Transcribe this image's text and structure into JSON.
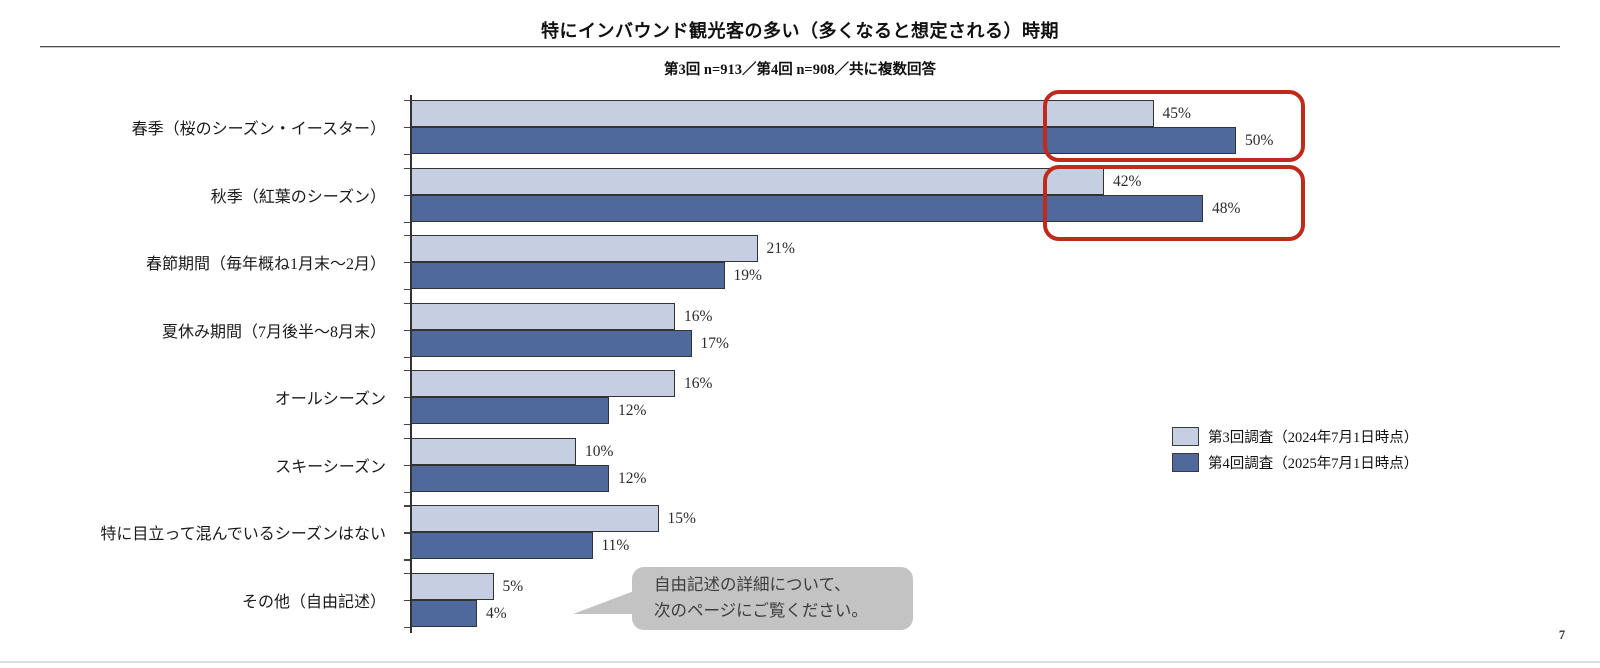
{
  "page": {
    "title": "特にインバウンド観光客の多い（多くなると想定される）時期",
    "subtitle": "第3回 n=913／第4回 n=908／共に複数回答",
    "page_number": "7"
  },
  "chart_data": {
    "type": "bar",
    "orientation": "horizontal",
    "title": "特にインバウンド観光客の多い（多くなると想定される）時期",
    "subtitle": "第3回 n=913／第4回 n=908／共に複数回答",
    "categories": [
      "春季（桜のシーズン・イースター）",
      "秋季（紅葉のシーズン）",
      "春節期間（毎年概ね1月末～2月）",
      "夏休み期間（7月後半～8月末）",
      "オールシーズン",
      "スキーシーズン",
      "特に目立って混んでいるシーズンはない",
      "その他（自由記述）"
    ],
    "series": [
      {
        "name": "第3回調査（2024年7月1日時点）",
        "color": "#c6cfe1",
        "values": [
          45,
          42,
          21,
          16,
          16,
          10,
          15,
          5
        ]
      },
      {
        "name": "第4回調査（2025年7月1日時点）",
        "color": "#4f699c",
        "values": [
          50,
          48,
          19,
          17,
          12,
          12,
          11,
          4
        ]
      }
    ],
    "value_suffix": "%",
    "xlim": [
      0,
      54
    ],
    "grid": false,
    "legend_position": "right"
  },
  "annotations": {
    "highlight_boxes": [
      {
        "target": "春季（桜のシーズン・イースター）",
        "color": "#bf2a1d"
      },
      {
        "target": "秋季（紅葉のシーズン）",
        "color": "#bf2a1d"
      }
    ],
    "callout": {
      "line1": "自由記述の詳細について、",
      "line2": "次のページにご覧ください。"
    }
  }
}
